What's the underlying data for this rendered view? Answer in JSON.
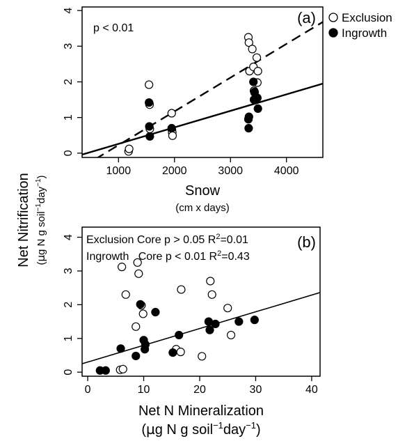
{
  "chart_data": [
    {
      "type": "scatter",
      "panel_label": "(a)",
      "annotation": "p < 0.01",
      "xlabel": "Snow",
      "xlabel_sub": "(cm x days)",
      "ylabel": "Net Nitrification",
      "ylabel_sub_parts": [
        "(",
        "µ",
        "g N g soil",
        "−1",
        "day",
        "−1",
        ")"
      ],
      "xlim": [
        350,
        4650
      ],
      "ylim": [
        -0.12,
        4.1
      ],
      "xticks": [
        1000,
        2000,
        3000,
        4000
      ],
      "yticks": [
        0,
        1,
        2,
        3,
        4
      ],
      "xtick_labels": [
        "1000",
        "2000",
        "3000",
        "4000"
      ],
      "ytick_labels": [
        "0",
        "1",
        "2",
        "3",
        "4"
      ],
      "legend_position": "outside-top-right",
      "series": [
        {
          "name": "Exclusion",
          "marker": "open-circle",
          "points": [
            [
              1180,
              0.05
            ],
            [
              1190,
              0.12
            ],
            [
              1545,
              1.92
            ],
            [
              1550,
              1.4
            ],
            [
              1555,
              1.36
            ],
            [
              1560,
              0.68
            ],
            [
              1950,
              1.12
            ],
            [
              1955,
              0.65
            ],
            [
              1960,
              0.58
            ],
            [
              1965,
              0.49
            ],
            [
              3320,
              3.25
            ],
            [
              3330,
              3.1
            ],
            [
              3340,
              2.3
            ],
            [
              3390,
              2.92
            ],
            [
              3410,
              2.42
            ],
            [
              3420,
              1.75
            ],
            [
              3430,
              1.7
            ],
            [
              3470,
              2.68
            ],
            [
              3480,
              1.98
            ],
            [
              3490,
              2.3
            ]
          ]
        },
        {
          "name": "Ingrowth",
          "marker": "filled-circle",
          "points": [
            [
              1545,
              1.42
            ],
            [
              1550,
              0.75
            ],
            [
              1560,
              0.47
            ],
            [
              1950,
              0.7
            ],
            [
              3320,
              0.95
            ],
            [
              3325,
              0.7
            ],
            [
              3330,
              1.02
            ],
            [
              3410,
              2.0
            ],
            [
              3420,
              1.5
            ],
            [
              3430,
              1.72
            ],
            [
              3480,
              1.55
            ],
            [
              3490,
              1.25
            ]
          ]
        }
      ],
      "fit_lines": [
        {
          "series": "Exclusion",
          "style": "dashed",
          "x": [
            350,
            4650
          ],
          "y": [
            -0.39,
            3.68
          ]
        },
        {
          "series": "Ingrowth",
          "style": "solid",
          "x": [
            350,
            4650
          ],
          "y": [
            -0.04,
            1.95
          ]
        }
      ]
    },
    {
      "type": "scatter",
      "panel_label": "(b)",
      "annotations": [
        {
          "label": "Exclusion Core p > 0.05 R",
          "sup": "2",
          "tail": "=0.01"
        },
        {
          "label": "Ingrowth   Core p < 0.01 R",
          "sup": "2",
          "tail": "=0.43"
        }
      ],
      "xlabel": "Net N Mineralization",
      "xlabel_sub_parts": [
        "(",
        "µ",
        "g N g soil",
        "−1",
        "day",
        "−1",
        ")"
      ],
      "xlim": [
        -1,
        41.5
      ],
      "ylim": [
        -0.12,
        4.3
      ],
      "xticks": [
        0,
        10,
        20,
        30,
        40
      ],
      "yticks": [
        0,
        1,
        2,
        3,
        4
      ],
      "xtick_labels": [
        "0",
        "10",
        "20",
        "30",
        "40"
      ],
      "ytick_labels": [
        "0",
        "1",
        "2",
        "3",
        "4"
      ],
      "series": [
        {
          "name": "Exclusion",
          "marker": "open-circle",
          "points": [
            [
              5.8,
              0.07
            ],
            [
              6.1,
              3.12
            ],
            [
              6.3,
              0.09
            ],
            [
              6.8,
              2.3
            ],
            [
              8.6,
              1.35
            ],
            [
              8.9,
              3.25
            ],
            [
              9.1,
              2.92
            ],
            [
              9.6,
              1.98
            ],
            [
              9.9,
              1.73
            ],
            [
              15.8,
              0.68
            ],
            [
              16.6,
              0.6
            ],
            [
              16.7,
              2.45
            ],
            [
              20.4,
              0.47
            ],
            [
              21.9,
              2.7
            ],
            [
              22.2,
              2.3
            ],
            [
              25.0,
              1.9
            ],
            [
              25.6,
              1.1
            ]
          ]
        },
        {
          "name": "Ingrowth",
          "marker": "filled-circle",
          "points": [
            [
              2.2,
              0.05
            ],
            [
              3.2,
              0.05
            ],
            [
              5.9,
              0.7
            ],
            [
              8.6,
              0.48
            ],
            [
              9.4,
              2.01
            ],
            [
              10.0,
              0.95
            ],
            [
              10.2,
              0.68
            ],
            [
              10.3,
              0.82
            ],
            [
              12.1,
              1.78
            ],
            [
              15.2,
              0.58
            ],
            [
              16.3,
              1.1
            ],
            [
              21.6,
              1.5
            ],
            [
              21.8,
              1.25
            ],
            [
              22.8,
              1.43
            ],
            [
              27.0,
              1.5
            ],
            [
              29.8,
              1.55
            ]
          ]
        }
      ],
      "fit_lines": [
        {
          "series": "Ingrowth",
          "style": "solid",
          "x": [
            -1,
            41.5
          ],
          "y": [
            0.25,
            2.36
          ]
        }
      ]
    }
  ],
  "legend": [
    {
      "label": "Exclusion",
      "marker": "open-circle"
    },
    {
      "label": "Ingrowth",
      "marker": "filled-circle"
    }
  ]
}
